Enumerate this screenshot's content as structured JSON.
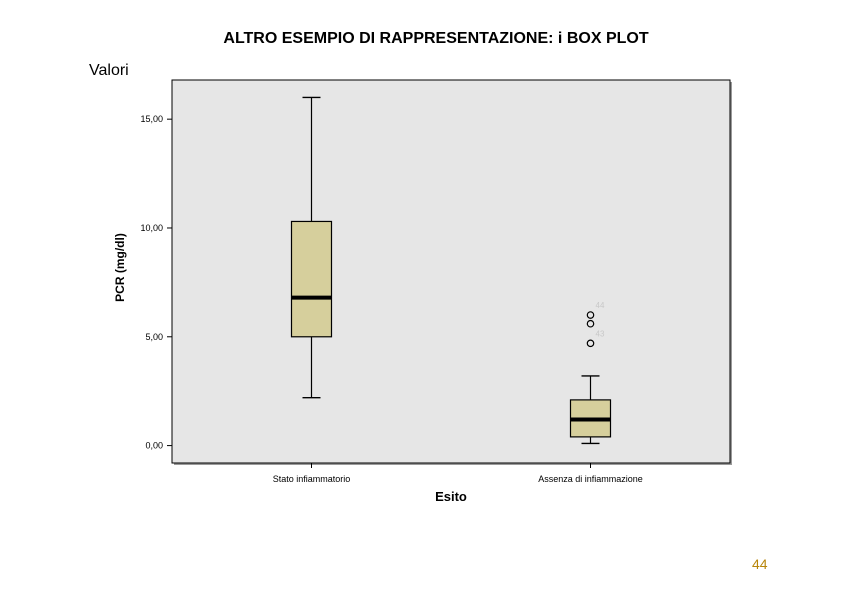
{
  "slide": {
    "title": "ALTRO ESEMPIO DI RAPPRESENTAZIONE: i BOX PLOT",
    "side_label": "Valori",
    "page_number": "44"
  },
  "colors": {
    "plot_background": "#e6e6e6",
    "box_fill": "#d6cf9c",
    "page_number": "#b8860b"
  },
  "chart_data": {
    "type": "boxplot",
    "title": "",
    "xlabel": "Esito",
    "ylabel": "PCR (mg/dl)",
    "ylim": [
      -0.8,
      16.8
    ],
    "yticks": [
      0,
      5,
      10,
      15
    ],
    "ytick_labels": [
      "0,00",
      "5,00",
      "10,00",
      "15,00"
    ],
    "grid": false,
    "categories": [
      "Stato infiammatorio",
      "Assenza di infiammazione"
    ],
    "boxes": [
      {
        "category": "Stato infiammatorio",
        "min": 2.2,
        "q1": 5.0,
        "median": 6.8,
        "q3": 10.3,
        "max": 16.0,
        "outliers": []
      },
      {
        "category": "Assenza di infiammazione",
        "min": 0.1,
        "q1": 0.4,
        "median": 1.2,
        "q3": 2.1,
        "max": 3.2,
        "outliers": [
          {
            "value": 6.0,
            "label": "44"
          },
          {
            "value": 5.6,
            "label": ""
          },
          {
            "value": 4.7,
            "label": "43"
          }
        ]
      }
    ]
  }
}
